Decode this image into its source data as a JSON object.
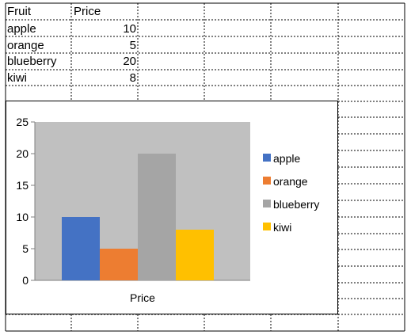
{
  "sheet": {
    "headers": [
      "Fruit",
      "Price"
    ],
    "rows": [
      {
        "fruit": "apple",
        "price": "10"
      },
      {
        "fruit": "orange",
        "price": "5"
      },
      {
        "fruit": "blueberry",
        "price": "20"
      },
      {
        "fruit": "kiwi",
        "price": "8"
      }
    ]
  },
  "chart_data": {
    "type": "bar",
    "categories": [
      "Price"
    ],
    "series": [
      {
        "name": "apple",
        "values": [
          10
        ],
        "color": "#4472C4"
      },
      {
        "name": "orange",
        "values": [
          5
        ],
        "color": "#ED7D31"
      },
      {
        "name": "blueberry",
        "values": [
          20
        ],
        "color": "#A5A5A5"
      },
      {
        "name": "kiwi",
        "values": [
          8
        ],
        "color": "#FFC000"
      }
    ],
    "ylim": [
      0,
      25
    ],
    "yticks": [
      "0",
      "5",
      "10",
      "15",
      "20",
      "25"
    ],
    "xlabel": "Price",
    "grid": false,
    "plot_area_color": "#C0C0C0",
    "legend": "right"
  }
}
